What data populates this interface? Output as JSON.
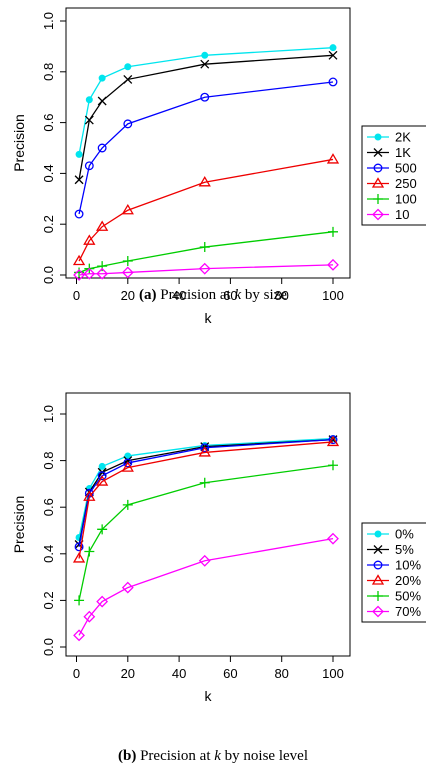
{
  "captions": [
    {
      "label": "(a)",
      "pre": " Precision at ",
      "var": "k",
      "post": " by size"
    },
    {
      "label": "(b)",
      "pre": " Precision at ",
      "var": "k",
      "post": " by noise level"
    }
  ],
  "chart_data": [
    {
      "type": "line",
      "xlabel": "k",
      "ylabel": "Precision",
      "xlim": [
        0,
        100
      ],
      "ylim": [
        0,
        1
      ],
      "xticks": [
        "0",
        "20",
        "40",
        "60",
        "80",
        "100"
      ],
      "yticks": [
        "0.0",
        "0.2",
        "0.4",
        "0.6",
        "0.8",
        "1.0"
      ],
      "legend_position": "right",
      "x": [
        1,
        5,
        10,
        20,
        50,
        100
      ],
      "series": [
        {
          "name": "2K",
          "color": "#00e5ee",
          "marker": "dot",
          "values": [
            0.475,
            0.69,
            0.775,
            0.82,
            0.865,
            0.895
          ]
        },
        {
          "name": "1K",
          "color": "#000000",
          "marker": "x",
          "values": [
            0.375,
            0.61,
            0.685,
            0.77,
            0.83,
            0.865
          ]
        },
        {
          "name": "500",
          "color": "#0000ff",
          "marker": "circle",
          "values": [
            0.24,
            0.43,
            0.5,
            0.595,
            0.7,
            0.76
          ]
        },
        {
          "name": "250",
          "color": "#ee0000",
          "marker": "triangle",
          "values": [
            0.055,
            0.135,
            0.19,
            0.255,
            0.365,
            0.455
          ]
        },
        {
          "name": "100",
          "color": "#00cd00",
          "marker": "plus",
          "values": [
            0.01,
            0.025,
            0.035,
            0.055,
            0.11,
            0.17
          ]
        },
        {
          "name": "10",
          "color": "#ff00ff",
          "marker": "diamond",
          "values": [
            0.0,
            0.005,
            0.005,
            0.01,
            0.025,
            0.04
          ]
        }
      ]
    },
    {
      "type": "line",
      "xlabel": "k",
      "ylabel": "Precision",
      "xlim": [
        0,
        100
      ],
      "ylim": [
        0,
        1
      ],
      "xticks": [
        "0",
        "20",
        "40",
        "60",
        "80",
        "100"
      ],
      "yticks": [
        "0.0",
        "0.2",
        "0.4",
        "0.6",
        "0.8",
        "1.0"
      ],
      "legend_position": "right",
      "x": [
        1,
        5,
        10,
        20,
        50,
        100
      ],
      "series": [
        {
          "name": "0%",
          "color": "#00e5ee",
          "marker": "dot",
          "values": [
            0.47,
            0.68,
            0.775,
            0.82,
            0.865,
            0.895
          ]
        },
        {
          "name": "5%",
          "color": "#000000",
          "marker": "x",
          "values": [
            0.44,
            0.665,
            0.75,
            0.8,
            0.86,
            0.89
          ]
        },
        {
          "name": "10%",
          "color": "#0000ff",
          "marker": "circle",
          "values": [
            0.43,
            0.66,
            0.735,
            0.79,
            0.855,
            0.89
          ]
        },
        {
          "name": "20%",
          "color": "#ee0000",
          "marker": "triangle",
          "values": [
            0.38,
            0.645,
            0.71,
            0.77,
            0.835,
            0.88
          ]
        },
        {
          "name": "50%",
          "color": "#00cd00",
          "marker": "plus",
          "values": [
            0.2,
            0.41,
            0.505,
            0.61,
            0.705,
            0.78
          ]
        },
        {
          "name": "70%",
          "color": "#ff00ff",
          "marker": "diamond",
          "values": [
            0.05,
            0.13,
            0.195,
            0.255,
            0.37,
            0.465
          ]
        }
      ]
    }
  ]
}
